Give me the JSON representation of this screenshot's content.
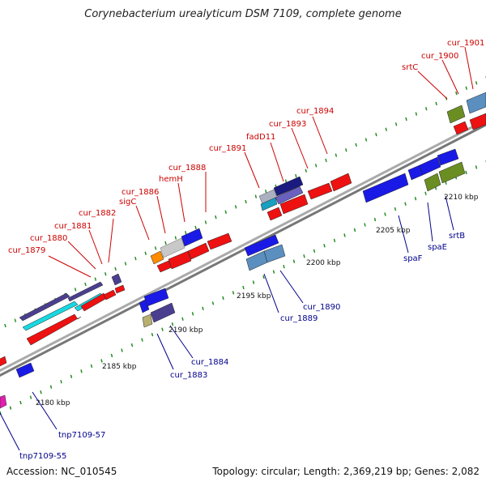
{
  "title": "Corynebacterium urealyticum DSM 7109, complete genome",
  "footer": {
    "accession": "Accession: NC_010545",
    "summary": "Topology: circular; Length: 2,369,219 bp; Genes: 2,082"
  },
  "kbp_labels": [
    "2180 kbp",
    "2185 kbp",
    "2190 kbp",
    "2195 kbp",
    "2200 kbp",
    "2205 kbp",
    "2210 kbp"
  ],
  "upper_labels": [
    "cur_1879",
    "cur_1880",
    "cur_1881",
    "cur_1882",
    "sigC",
    "cur_1886",
    "hemH",
    "cur_1888",
    "cur_1891",
    "fadD11",
    "cur_1893",
    "cur_1894",
    "srtC",
    "cur_1900",
    "cur_1901"
  ],
  "lower_labels": [
    "tnp7109-55",
    "tnp7109-57",
    "cur_1883",
    "cur_1884",
    "cur_1889",
    "cur_1890",
    "spaF",
    "spaE",
    "srtB"
  ],
  "colors": {
    "red_gene": "#ee1111",
    "blue_gene": "#1a1ae6",
    "navy_gene": "#4a3f8f",
    "cyan_gene": "#19d8e0",
    "steel_gene": "#5a8fc0",
    "olive_gene": "#6b8e23",
    "orange_gene": "#ff8c00",
    "grey_gene": "#c8c8c8",
    "magenta_gene": "#e020b0",
    "khaki_gene": "#b8b070",
    "backbone": "#888888",
    "tick": "#228b22",
    "label_red": "#cc0000",
    "label_blue": "#00008b"
  }
}
